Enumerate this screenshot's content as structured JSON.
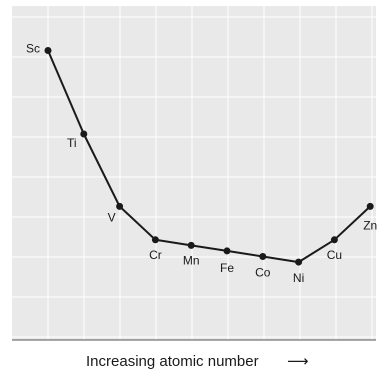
{
  "chart_data": {
    "type": "line",
    "xlabel": "Increasing atomic number",
    "xlabel_arrow": "⟶",
    "ylabel": "",
    "title": "",
    "categories": [
      "Sc",
      "Ti",
      "V",
      "Cr",
      "Mn",
      "Fe",
      "Co",
      "Ni",
      "Cu",
      "Zn"
    ],
    "series": [
      {
        "values": [
          162,
          147,
          134,
          128,
          127,
          126,
          125,
          124,
          128,
          134
        ]
      }
    ],
    "ylim": [
      110,
      170
    ],
    "grid": true,
    "colors": {
      "plot_background": "#e9e9e9",
      "grid": "#ffffff",
      "line": "#1a1a1a",
      "text": "#1a1a1a"
    }
  }
}
